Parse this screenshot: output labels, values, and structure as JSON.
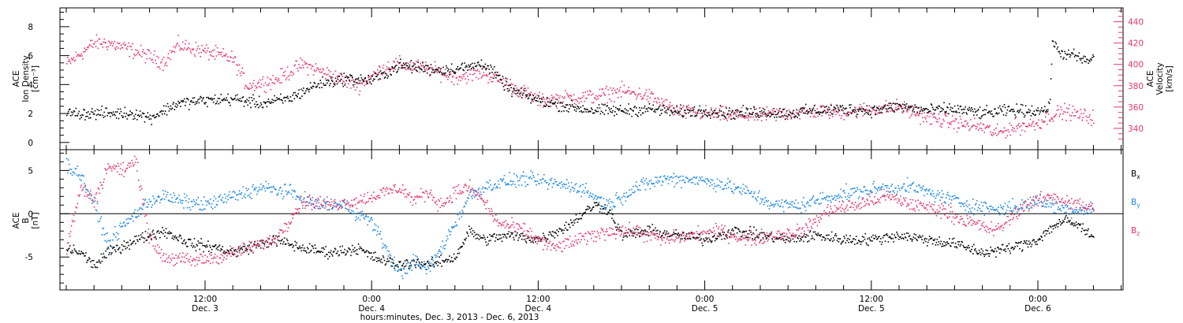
{
  "chart_data": [
    {
      "type": "scatter",
      "panel": "top",
      "ylabel_left_lines": [
        "ACE",
        "Ion Density",
        "[cm⁻³]"
      ],
      "ylabel_right_lines": [
        "ACE",
        "Velocity",
        "[km/s]"
      ],
      "ylim_left": [
        -0.5,
        9.3
      ],
      "ylim_right": [
        320,
        453
      ],
      "yticks_left": [
        "0",
        "2",
        "4",
        "6",
        "8"
      ],
      "yticks_right": [
        "340",
        "360",
        "380",
        "400",
        "420",
        "440"
      ],
      "colors": {
        "density": "#000000",
        "velocity": "#e8376a"
      },
      "series": [
        {
          "name": "Ion Density",
          "axis": "left",
          "x_hours": [
            0,
            3,
            5,
            6,
            7,
            8,
            10,
            12,
            14,
            16,
            18,
            20,
            22,
            24,
            26,
            27,
            29,
            30,
            32,
            34,
            36,
            38,
            40,
            42,
            44,
            46,
            48,
            50,
            52,
            54,
            56,
            58,
            60,
            62,
            64,
            66,
            68,
            70,
            70.8,
            71,
            71.5,
            72,
            72.5,
            73,
            73.5,
            74
          ],
          "values": [
            2.0,
            2.0,
            2.0,
            1.7,
            2.2,
            2.7,
            2.9,
            3.0,
            2.7,
            3.0,
            4.0,
            4.4,
            4.3,
            5.3,
            5.1,
            5.0,
            5.2,
            5.5,
            3.6,
            2.9,
            2.5,
            2.2,
            2.2,
            2.3,
            2.1,
            2.2,
            2.0,
            2.1,
            2.0,
            2.2,
            2.3,
            2.2,
            2.5,
            2.2,
            2.3,
            2.0,
            2.2,
            2.2,
            2.3,
            7.0,
            6.2,
            6.1,
            6.0,
            5.8,
            5.6,
            5.8
          ]
        },
        {
          "name": "Velocity",
          "axis": "right",
          "x_hours": [
            0,
            2,
            3,
            5,
            7,
            8,
            10,
            12,
            13,
            15,
            17,
            19,
            21,
            23,
            24,
            26,
            28,
            29,
            30,
            32,
            34,
            36,
            38,
            40,
            42,
            44,
            46,
            48,
            50,
            52,
            54,
            56,
            58,
            60,
            62,
            64,
            66,
            67,
            68,
            70,
            71,
            72,
            73,
            74
          ],
          "values": [
            400,
            420,
            420,
            412,
            402,
            418,
            412,
            405,
            380,
            385,
            400,
            390,
            380,
            398,
            400,
            396,
            388,
            390,
            392,
            380,
            366,
            368,
            370,
            375,
            370,
            355,
            354,
            352,
            352,
            354,
            356,
            355,
            358,
            360,
            350,
            345,
            341,
            335,
            340,
            345,
            353,
            356,
            352,
            350
          ]
        }
      ]
    },
    {
      "type": "scatter",
      "panel": "bottom",
      "ylabel_lines": [
        "ACE",
        "B",
        "[nT]"
      ],
      "ylim": [
        -8.8,
        7.4
      ],
      "yticks": [
        "-5",
        "0",
        "5"
      ],
      "zero_line": true,
      "colors": {
        "Bx": "#000000",
        "By": "#1e88e5",
        "Bz": "#e8376a"
      },
      "legend": [
        {
          "base": "B",
          "sub": "x",
          "color": "#000000"
        },
        {
          "base": "B",
          "sub": "y",
          "color": "#1e88e5"
        },
        {
          "base": "B",
          "sub": "z",
          "color": "#e8376a"
        }
      ],
      "series": [
        {
          "name": "Bx",
          "x_hours": [
            0,
            1,
            2,
            3,
            5,
            7,
            9,
            11,
            12,
            13,
            15,
            17,
            19,
            21,
            22,
            24,
            25,
            26,
            28,
            29,
            30,
            32,
            34,
            36,
            38,
            39,
            40,
            42,
            44,
            46,
            48,
            50,
            52,
            54,
            56,
            58,
            60,
            62,
            64,
            66,
            68,
            69,
            70,
            71,
            72,
            73,
            74
          ],
          "values": [
            -4,
            -4.5,
            -6.0,
            -4.5,
            -3.0,
            -2.0,
            -3.5,
            -4.0,
            -4.5,
            -4.0,
            -3.0,
            -4.0,
            -4.5,
            -4.0,
            -5.0,
            -6.0,
            -5.5,
            -6.0,
            -5.0,
            -2.0,
            -3.0,
            -2.5,
            -3.0,
            -1.5,
            1.0,
            0.5,
            -2.5,
            -2.0,
            -2.5,
            -3.0,
            -2.0,
            -2.5,
            -3.0,
            -2.5,
            -3.0,
            -3.0,
            -2.5,
            -3.0,
            -3.5,
            -4.5,
            -4.0,
            -3.5,
            -3.0,
            -1.5,
            -0.8,
            -1.5,
            -2.5
          ]
        },
        {
          "name": "By",
          "x_hours": [
            0,
            1,
            2,
            3,
            4,
            6,
            7,
            8,
            10,
            12,
            14,
            16,
            18,
            20,
            22,
            23,
            24,
            25,
            26,
            27,
            28,
            29,
            30,
            31,
            33,
            35,
            37,
            39,
            41,
            43,
            45,
            47,
            48,
            49,
            51,
            53,
            55,
            57,
            59,
            61,
            63,
            65,
            67,
            69,
            70,
            71,
            72,
            73,
            74
          ],
          "values": [
            5.5,
            4.5,
            1.0,
            -3.5,
            -1.5,
            1.5,
            2.0,
            1.5,
            1.0,
            2.0,
            3.0,
            2.5,
            1.0,
            1.0,
            -1.0,
            -4.0,
            -7.0,
            -5.5,
            -6.5,
            -4.0,
            -1.0,
            2.0,
            3.0,
            3.5,
            4.0,
            3.5,
            3.0,
            1.0,
            3.0,
            4.0,
            4.0,
            3.5,
            3.0,
            2.5,
            1.0,
            1.0,
            2.0,
            2.5,
            3.0,
            3.0,
            2.0,
            1.0,
            0.5,
            1.0,
            1.5,
            1.0,
            0.5,
            0.5,
            0.5
          ]
        },
        {
          "name": "Bz",
          "x_hours": [
            0,
            1,
            2,
            3,
            4,
            5,
            6,
            7,
            9,
            11,
            13,
            15,
            17,
            19,
            21,
            23,
            24,
            25,
            26,
            27,
            28,
            29,
            30,
            31,
            33,
            35,
            37,
            39,
            41,
            43,
            45,
            47,
            49,
            51,
            53,
            55,
            57,
            59,
            61,
            63,
            65,
            67,
            69,
            70,
            71,
            72,
            73,
            74
          ],
          "values": [
            -4.0,
            3.0,
            1.5,
            5.5,
            5.0,
            6.0,
            -3.0,
            -5.0,
            -5.5,
            -5.0,
            -4.0,
            -3.0,
            1.5,
            1.0,
            1.5,
            2.5,
            3.0,
            1.5,
            2.5,
            1.0,
            2.5,
            3.0,
            1.5,
            -1.0,
            -2.0,
            -4.0,
            -3.0,
            -2.0,
            -2.0,
            -3.0,
            -2.5,
            -2.0,
            -3.0,
            -2.5,
            -2.0,
            0.5,
            1.0,
            2.0,
            1.0,
            0.5,
            -1.0,
            -2.0,
            1.0,
            1.5,
            2.0,
            1.5,
            1.0,
            0.5
          ]
        }
      ]
    }
  ],
  "x_axis": {
    "ticks": [
      {
        "hours": 10,
        "time": "12:00",
        "date": "Dec. 3"
      },
      {
        "hours": 22,
        "time": "0:00",
        "date": "Dec. 4"
      },
      {
        "hours": 34,
        "time": "12:00",
        "date": "Dec. 4"
      },
      {
        "hours": 46,
        "time": "0:00",
        "date": "Dec. 5"
      },
      {
        "hours": 58,
        "time": "12:00",
        "date": "Dec. 5"
      },
      {
        "hours": 70,
        "time": "0:00",
        "date": "Dec. 6"
      }
    ],
    "title": "hours:minutes, Dec.  3, 2013 - Dec.  6, 2013"
  }
}
